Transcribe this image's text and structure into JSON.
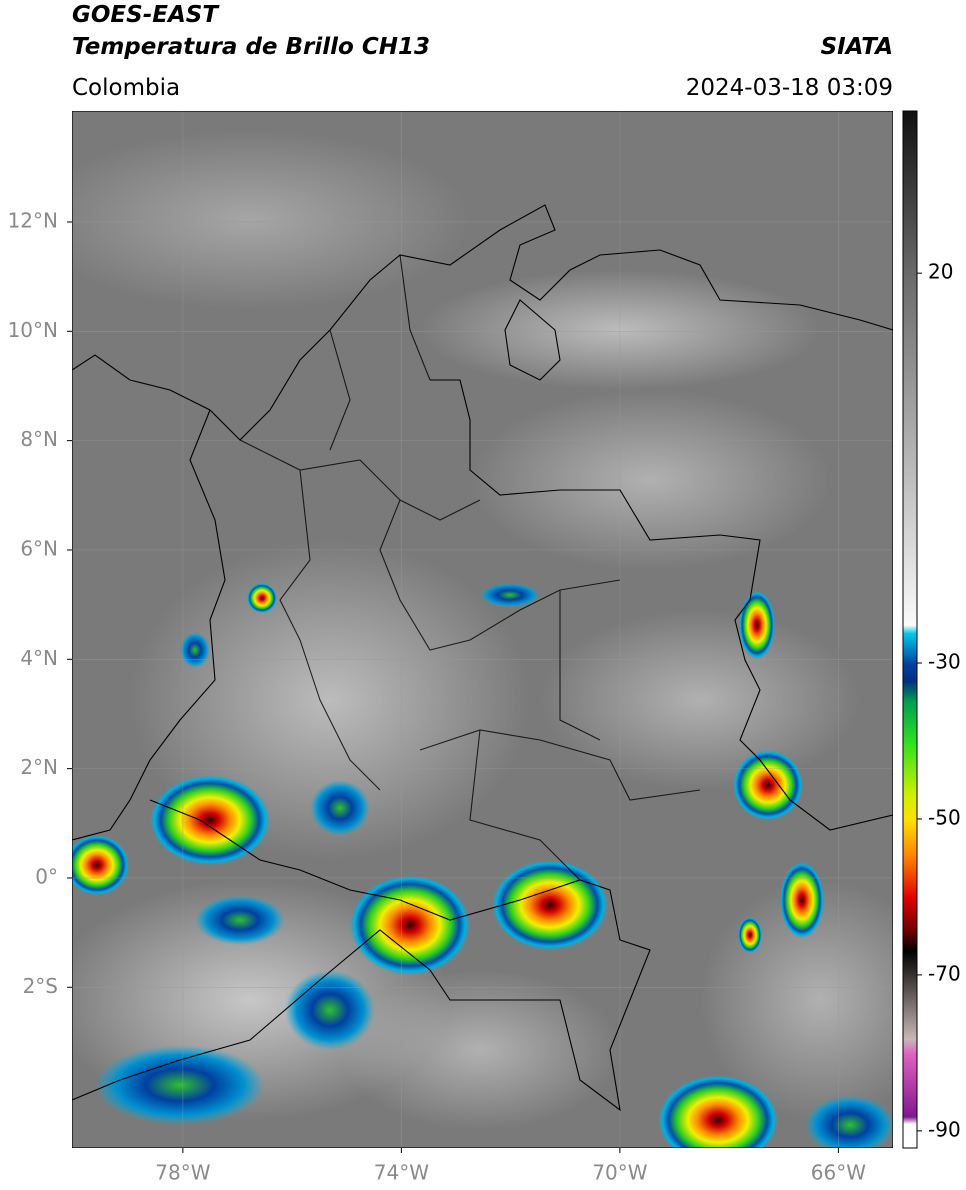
{
  "header": {
    "satellite": "GOES-EAST",
    "product": "Temperatura de Brillo CH13",
    "source": "SIATA",
    "region": "Colombia",
    "datetime": "2024-03-18 03:09"
  },
  "map": {
    "lat_range": [
      -4.94,
      14.03
    ],
    "lon_range": [
      -80.03,
      -65.0
    ],
    "lat_ticks": [
      {
        "value": 12,
        "label": "12°N"
      },
      {
        "value": 10,
        "label": "10°N"
      },
      {
        "value": 8,
        "label": "8°N"
      },
      {
        "value": 6,
        "label": "6°N"
      },
      {
        "value": 4,
        "label": "4°N"
      },
      {
        "value": 2,
        "label": "2°N"
      },
      {
        "value": 0,
        "label": "0°"
      },
      {
        "value": -2,
        "label": "2°S"
      }
    ],
    "lon_ticks": [
      {
        "value": -78,
        "label": "78°W"
      },
      {
        "value": -74,
        "label": "74°W"
      },
      {
        "value": -70,
        "label": "70°W"
      },
      {
        "value": -66,
        "label": "66°W"
      }
    ]
  },
  "colorbar": {
    "range": [
      -92.2,
      40.8
    ],
    "ticks": [
      20,
      -30,
      -50,
      -70,
      -90
    ]
  }
}
